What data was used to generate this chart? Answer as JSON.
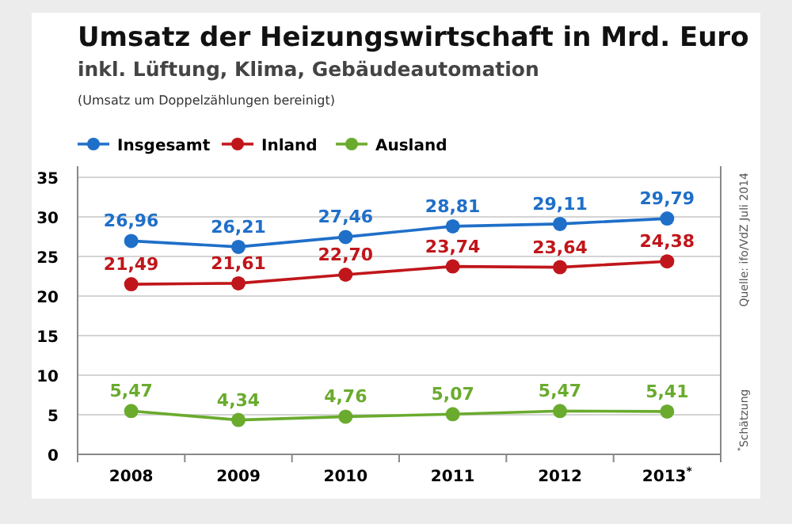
{
  "chart_data": {
    "type": "line",
    "title": "Umsatz der Heizungswirtschaft in Mrd. Euro",
    "subtitle": "inkl. Lüftung, Klima, Gebäudeautomation",
    "annotations": [
      "(Umsatz um Doppelzählungen bereinigt)",
      "Quelle: ifo/VdZ Juli 2014",
      "$^{*}$Schätzung"
    ],
    "categories": [
      "2008",
      "2009",
      "2010",
      "2011",
      "2012",
      "2013$^{*}$"
    ],
    "series": [
      {
        "name": "Insgesamt",
        "color": "#1f6fc9",
        "values": [
          26.96,
          26.21,
          27.46,
          28.81,
          29.11,
          29.79
        ],
        "value_labels": [
          "26,96",
          "26,21",
          "27,46",
          "28,81",
          "29,11",
          "29,79"
        ]
      },
      {
        "name": "Inland",
        "color": "#c0161b",
        "values": [
          21.49,
          21.61,
          22.7,
          23.74,
          23.64,
          24.38
        ],
        "value_labels": [
          "21,49",
          "21,61",
          "22,70",
          "23,74",
          "23,64",
          "24,38"
        ]
      },
      {
        "name": "Ausland",
        "color": "#6aab2e",
        "values": [
          5.47,
          4.34,
          4.76,
          5.07,
          5.47,
          5.41
        ],
        "value_labels": [
          "5,47",
          "4,34",
          "4,76",
          "5,07",
          "5,47",
          "5,41"
        ]
      }
    ],
    "ylim": [
      0,
      35
    ],
    "yticks": [
      0,
      5,
      10,
      15,
      20,
      25,
      30,
      35
    ],
    "grid": "y",
    "legend": "top left",
    "marker": "circle",
    "line_style": "solid"
  }
}
